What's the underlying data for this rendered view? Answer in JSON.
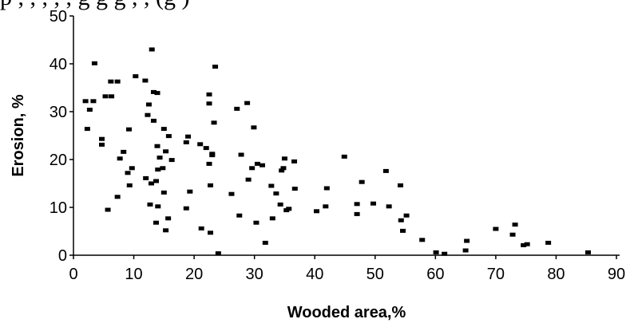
{
  "top_text": "p   ,   ,   ,   ,   ,   g   g   g   ,   , (g   )",
  "chart_data": {
    "type": "scatter",
    "title": "",
    "xlabel": "Wooded  area,%",
    "ylabel": "Erosion, %",
    "xlim": [
      0,
      90
    ],
    "ylim": [
      0,
      50
    ],
    "xticks": [
      0,
      10,
      20,
      30,
      40,
      50,
      60,
      70,
      80,
      90
    ],
    "yticks": [
      0,
      10,
      20,
      30,
      40,
      50
    ],
    "grid": false,
    "marker": "square",
    "marker_color": "#000000",
    "points": [
      [
        2,
        32.2
      ],
      [
        2.3,
        26.4
      ],
      [
        2.7,
        30.4
      ],
      [
        3.3,
        32.2
      ],
      [
        3.5,
        40.1
      ],
      [
        4.7,
        24.3
      ],
      [
        4.7,
        23.1
      ],
      [
        5.3,
        33.2
      ],
      [
        5.7,
        9.5
      ],
      [
        6.2,
        36.3
      ],
      [
        6.3,
        33.2
      ],
      [
        7.3,
        12.2
      ],
      [
        7.3,
        36.3
      ],
      [
        7.7,
        20.2
      ],
      [
        8.3,
        21.6
      ],
      [
        9.2,
        26.3
      ],
      [
        9,
        17.2
      ],
      [
        9.3,
        14.6
      ],
      [
        9.7,
        18.2
      ],
      [
        10.3,
        37.4
      ],
      [
        11.9,
        36.5
      ],
      [
        12,
        16.1
      ],
      [
        12.3,
        29.3
      ],
      [
        12.5,
        31.5
      ],
      [
        12.7,
        10.6
      ],
      [
        13,
        43
      ],
      [
        12.9,
        15
      ],
      [
        13.3,
        34.1
      ],
      [
        13.3,
        28.1
      ],
      [
        13.7,
        15.5
      ],
      [
        13.7,
        6.8
      ],
      [
        13.9,
        33.9
      ],
      [
        13.9,
        22.8
      ],
      [
        14,
        17.9
      ],
      [
        14,
        10.2
      ],
      [
        14.3,
        20.4
      ],
      [
        14.8,
        18.2
      ],
      [
        15,
        13.1
      ],
      [
        15,
        26.4
      ],
      [
        15.3,
        21.7
      ],
      [
        15.3,
        5.2
      ],
      [
        15.7,
        7.7
      ],
      [
        15.8,
        24.9
      ],
      [
        16.3,
        19.9
      ],
      [
        18.7,
        23.6
      ],
      [
        18.7,
        9.8
      ],
      [
        19,
        24.8
      ],
      [
        19.3,
        13.3
      ],
      [
        21,
        23.2
      ],
      [
        21.2,
        5.6
      ],
      [
        22,
        22.4
      ],
      [
        22.5,
        33.6
      ],
      [
        22.5,
        31.7
      ],
      [
        22.5,
        19.1
      ],
      [
        22.7,
        14.6
      ],
      [
        22.7,
        4.7
      ],
      [
        23,
        20.9
      ],
      [
        23,
        21.2
      ],
      [
        23.3,
        27.7
      ],
      [
        23.5,
        39.4
      ],
      [
        24,
        0.4
      ],
      [
        26.2,
        12.8
      ],
      [
        27.1,
        30.6
      ],
      [
        27.5,
        8.3
      ],
      [
        27.8,
        21
      ],
      [
        28.8,
        31.8
      ],
      [
        29,
        15.8
      ],
      [
        29.6,
        18.2
      ],
      [
        29.9,
        26.7
      ],
      [
        30.3,
        6.8
      ],
      [
        30.5,
        19.1
      ],
      [
        31.3,
        18.8
      ],
      [
        31.8,
        2.6
      ],
      [
        32.8,
        14.5
      ],
      [
        33,
        7.7
      ],
      [
        33.6,
        12.9
      ],
      [
        34.3,
        10.6
      ],
      [
        34.5,
        17.7
      ],
      [
        34.8,
        18.2
      ],
      [
        35,
        20.2
      ],
      [
        35.3,
        9.4
      ],
      [
        35.7,
        9.7
      ],
      [
        36.6,
        19.6
      ],
      [
        36.7,
        13.9
      ],
      [
        40.3,
        9.2
      ],
      [
        41.8,
        10.2
      ],
      [
        42,
        14
      ],
      [
        44.9,
        20.6
      ],
      [
        47,
        8.6
      ],
      [
        47,
        10.7
      ],
      [
        47.8,
        15.3
      ],
      [
        49.7,
        10.8
      ],
      [
        51.8,
        17.6
      ],
      [
        52.3,
        10.2
      ],
      [
        54.2,
        14.6
      ],
      [
        54.3,
        7.3
      ],
      [
        54.6,
        5.1
      ],
      [
        55.2,
        8.3
      ],
      [
        57.8,
        3.2
      ],
      [
        60.1,
        0.6
      ],
      [
        61.5,
        0.3
      ],
      [
        65,
        1
      ],
      [
        65.2,
        3
      ],
      [
        70,
        5.5
      ],
      [
        72.8,
        4.3
      ],
      [
        73.2,
        6.4
      ],
      [
        74.6,
        2.1
      ],
      [
        75.2,
        2.3
      ],
      [
        78.7,
        2.6
      ],
      [
        85.3,
        0.6
      ]
    ]
  }
}
